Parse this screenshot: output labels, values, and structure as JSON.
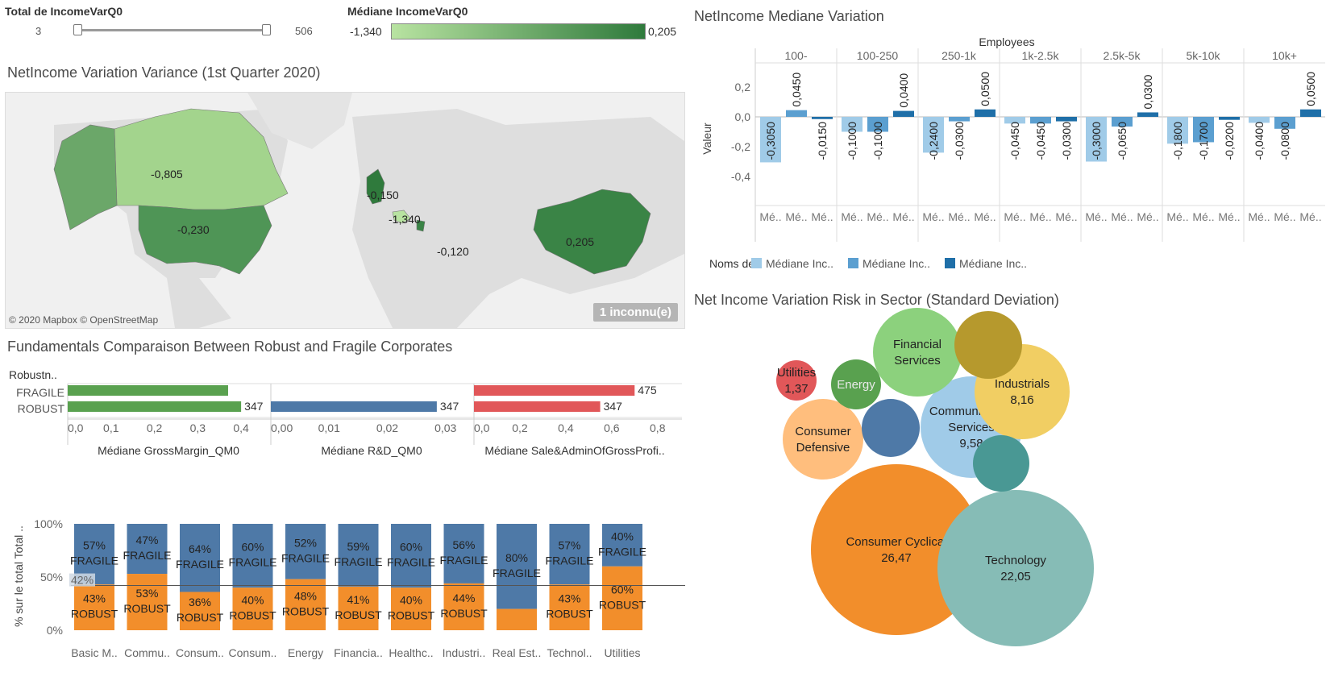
{
  "filters": {
    "total": {
      "title": "Total de IncomeVarQ0",
      "min": "3",
      "max": "506"
    },
    "median": {
      "title": "Médiane IncomeVarQ0",
      "min": "-1,340",
      "max": "0,205",
      "color_low": "#b8e3a1",
      "color_high": "#2f7a3c"
    }
  },
  "map": {
    "title": "NetIncome Variation Variance (1st Quarter 2020)",
    "credit": "© 2020 Mapbox © OpenStreetMap",
    "unknown": "1 inconnu(e)",
    "labels": [
      "-0,805",
      "-0,230",
      "-0,150",
      "-1,340",
      "-0,120",
      "0,205"
    ]
  },
  "fundamentals": {
    "title": "Fundamentals Comparaison Between Robust and Fragile Corporates",
    "row_header": "Robustn..",
    "rows": [
      "FRAGILE",
      "ROBUST"
    ],
    "panels": [
      {
        "name": "Médiane GrossMargin_QM0",
        "color": "#59a14f",
        "values": [
          0.37,
          0.4
        ],
        "labels": [
          "",
          "347"
        ],
        "max": 0.45,
        "ticks": [
          "0,0",
          "0,1",
          "0,2",
          "0,3",
          "0,4"
        ],
        "tickvals": [
          0,
          0.1,
          0.2,
          0.3,
          0.4
        ]
      },
      {
        "name": "Médiane R&D_QM0",
        "color": "#4e79a7",
        "values": [
          0,
          0.0285
        ],
        "labels": [
          "",
          "347"
        ],
        "max": 0.0335,
        "ticks": [
          "0,00",
          "0,01",
          "0,02",
          "0,03"
        ],
        "tickvals": [
          0,
          0.01,
          0.02,
          0.03
        ]
      },
      {
        "name": "Médiane Sale&AdminOfGrossProfi..",
        "color": "#e15759",
        "values": [
          0.7,
          0.55
        ],
        "labels": [
          "475",
          "347"
        ],
        "max": 0.85,
        "ticks": [
          "0,0",
          "0,2",
          "0,4",
          "0,6",
          "0,8"
        ],
        "tickvals": [
          0,
          0.2,
          0.4,
          0.6,
          0.8
        ]
      }
    ]
  },
  "netincome": {
    "title": "NetIncome Mediane Variation",
    "group_header": "Employees",
    "yaxis_title": "Valeur",
    "ticks": [
      "0,2",
      "0,0",
      "-0,2",
      "-0,4"
    ],
    "tickvals": [
      0.2,
      0,
      -0.2,
      -0.4
    ],
    "groups": [
      "100-",
      "100-250",
      "250-1k",
      "1k-2.5k",
      "2.5k-5k",
      "5k-10k",
      "10k+"
    ],
    "sub_label": "Mé..",
    "series_colors": [
      "#a0cbe8",
      "#5b9fd0",
      "#1f6fa8"
    ],
    "legend_title": "Noms de..",
    "legend": [
      "Médiane Inc..",
      "Médiane Inc..",
      "Médiane Inc.."
    ],
    "values": [
      [
        -0.305,
        0.045,
        -0.015
      ],
      [
        -0.1,
        -0.1,
        0.04
      ],
      [
        -0.24,
        -0.03,
        0.05
      ],
      [
        -0.045,
        -0.045,
        -0.03
      ],
      [
        -0.3,
        -0.065,
        0.03
      ],
      [
        -0.18,
        -0.17,
        -0.02
      ],
      [
        -0.04,
        -0.08,
        0.05
      ]
    ],
    "labels": [
      [
        "-0,3050",
        "0,0450",
        "-0,0150"
      ],
      [
        "-0,1000",
        "-0,1000",
        "0,0400"
      ],
      [
        "-0,2400",
        "-0,0300",
        "0,0500"
      ],
      [
        "-0,0450",
        "-0,0450",
        "-0,0300"
      ],
      [
        "-0,3000",
        "-0,0650",
        "0,0300"
      ],
      [
        "-0,1800",
        "-0,1700",
        "-0,0200"
      ],
      [
        "-0,0400",
        "-0,0800",
        "0,0500"
      ]
    ]
  },
  "stacked": {
    "yaxis_title": "% sur le total Total ..",
    "ticks": [
      "100%",
      "50%",
      "0%"
    ],
    "tickvals": [
      100,
      50,
      0
    ],
    "fragile_color": "#4e79a7",
    "robust_color": "#f28e2b",
    "ref_label": "42%",
    "categories": [
      "Basic M..",
      "Commu..",
      "Consum..",
      "Consum..",
      "Energy",
      "Financia..",
      "Healthc..",
      "Industri..",
      "Real Est..",
      "Technol..",
      "Utilities"
    ],
    "fragile": [
      57,
      47,
      64,
      60,
      52,
      59,
      60,
      56,
      80,
      57,
      40
    ],
    "robust": [
      43,
      53,
      36,
      40,
      48,
      41,
      40,
      44,
      20,
      43,
      60
    ],
    "fragile_labels": [
      "57%",
      "47%",
      "64%",
      "60%",
      "52%",
      "59%",
      "60%",
      "56%",
      "80%",
      "57%",
      "40%"
    ],
    "robust_labels": [
      "43%",
      "53%",
      "36%",
      "40%",
      "48%",
      "41%",
      "40%",
      "44%",
      "",
      "43%",
      "60%"
    ],
    "fragile_name": "FRAGILE",
    "robust_name": "ROBUST"
  },
  "bubbles": {
    "title": "Net Income Variation Risk in Sector (Standard Deviation)",
    "items": [
      {
        "name": "Consumer Cyclical",
        "value": "26,47",
        "color": "#f28e2b"
      },
      {
        "name": "Technology",
        "value": "22,05",
        "color": "#86bcb6"
      },
      {
        "name": "Communication Services",
        "value": "9,58",
        "color": "#a0cbe8"
      },
      {
        "name": "Industrials",
        "value": "8,16",
        "color": "#f1ce63"
      },
      {
        "name": "Financial Services",
        "value": "",
        "color": "#8cd17d"
      },
      {
        "name": "Consumer Defensive",
        "value": "",
        "color": "#ffbe7d"
      },
      {
        "name": "Energy",
        "value": "",
        "color": "#59a14f"
      },
      {
        "name": "Utilities",
        "value": "1,37",
        "color": "#e15759"
      },
      {
        "name": "",
        "value": "",
        "color": "#b6992d"
      },
      {
        "name": "",
        "value": "",
        "color": "#4e79a7"
      },
      {
        "name": "",
        "value": "",
        "color": "#499894"
      }
    ]
  }
}
